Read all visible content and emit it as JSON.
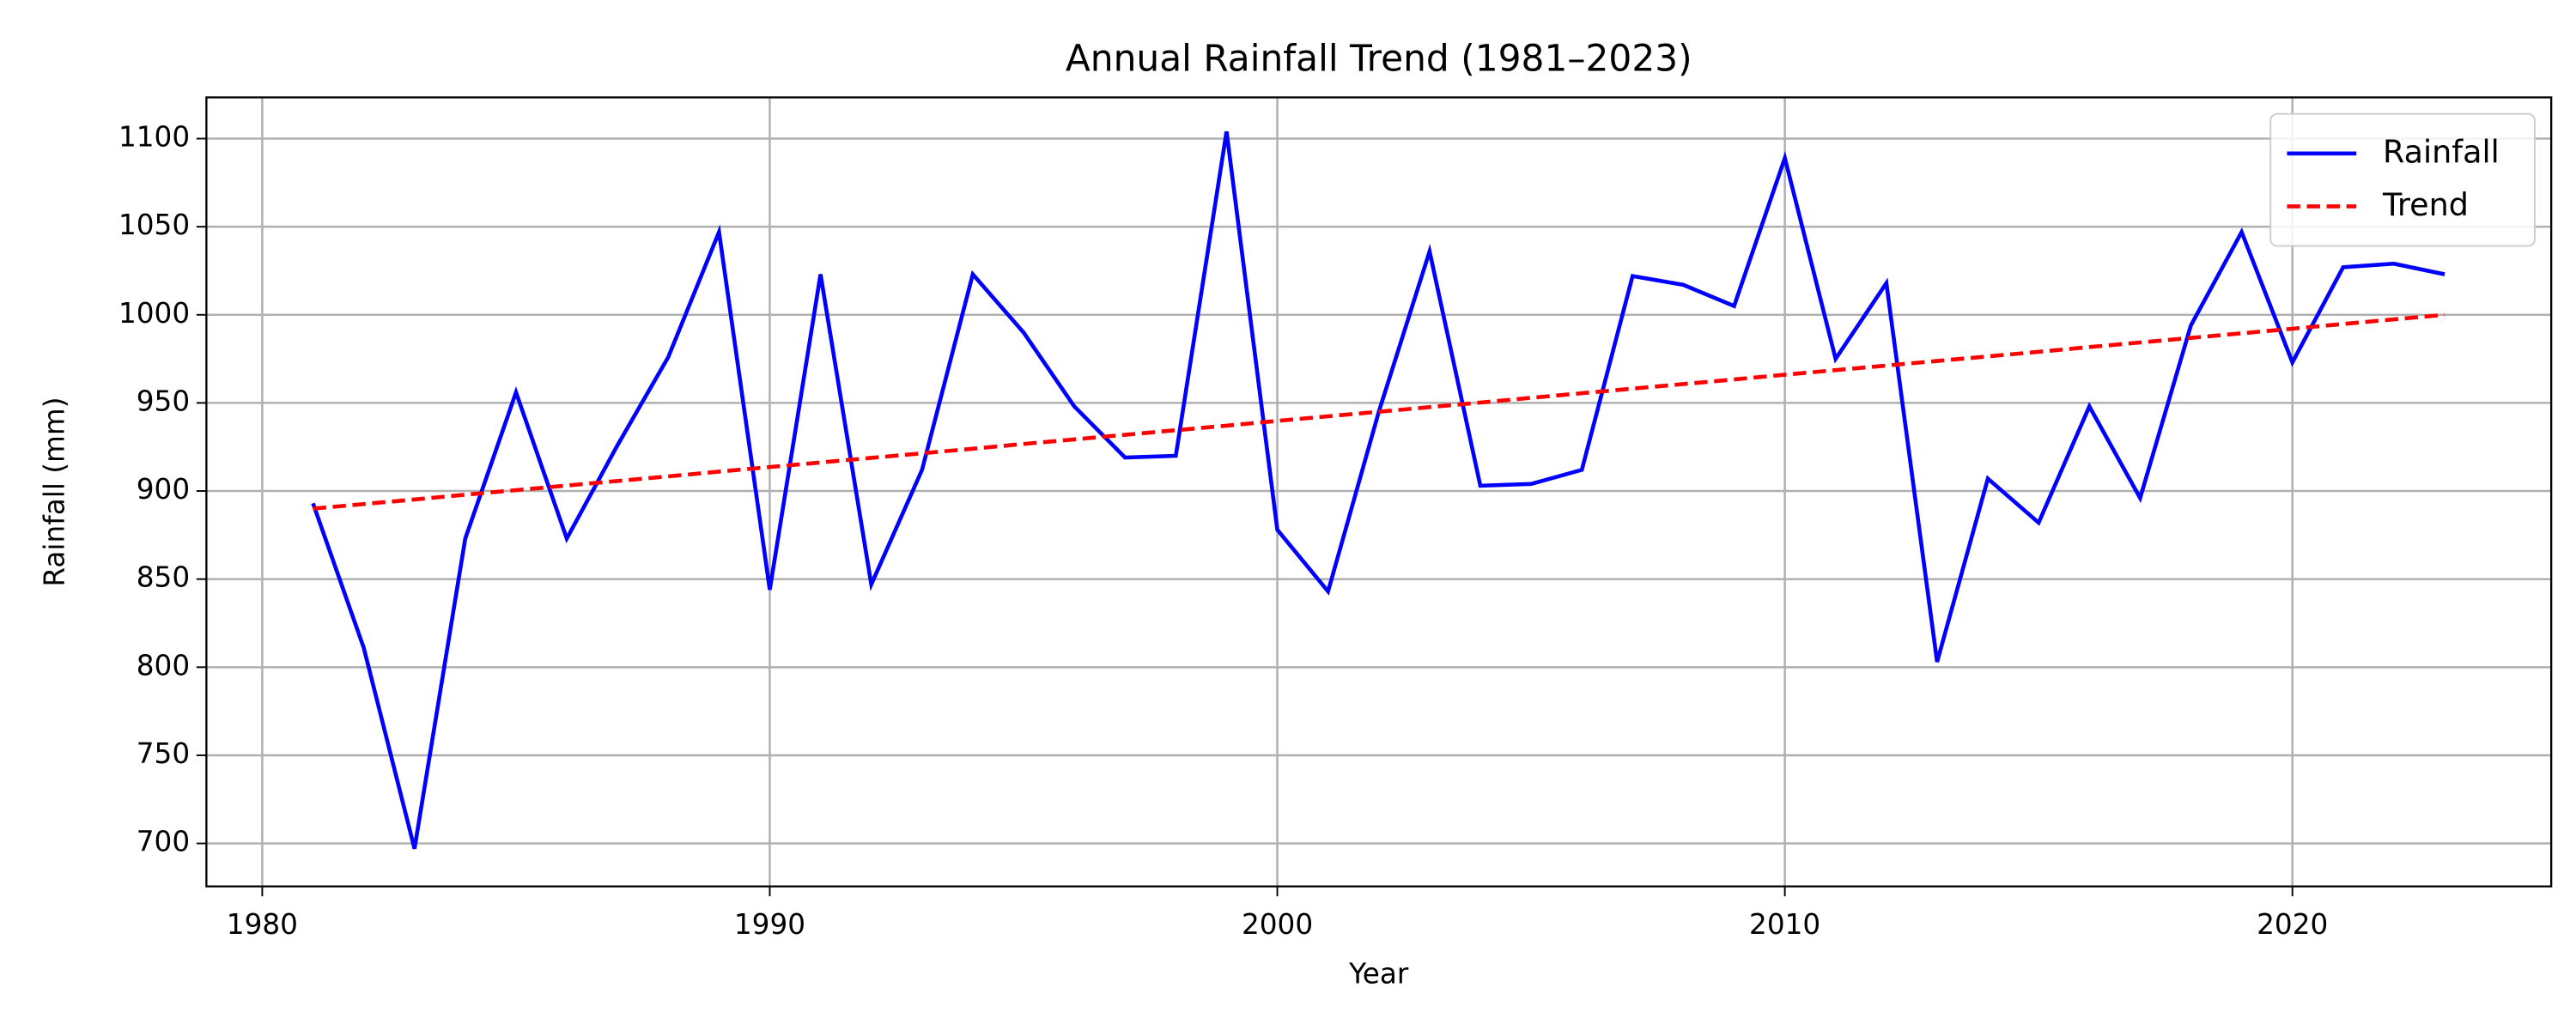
{
  "chart_data": {
    "type": "line",
    "title": "Annual Rainfall Trend (1981–2023)",
    "x_label": "Year",
    "y_label": "Rainfall (mm)",
    "x": [
      1981,
      1982,
      1983,
      1984,
      1985,
      1986,
      1987,
      1988,
      1989,
      1990,
      1991,
      1992,
      1993,
      1994,
      1995,
      1996,
      1997,
      1998,
      1999,
      2000,
      2001,
      2002,
      2003,
      2004,
      2005,
      2006,
      2007,
      2008,
      2009,
      2010,
      2011,
      2012,
      2013,
      2014,
      2015,
      2016,
      2017,
      2018,
      2019,
      2020,
      2021,
      2022,
      2023
    ],
    "series": [
      {
        "name": "Rainfall",
        "color": "#0000ff",
        "dash": "solid",
        "values": [
          893,
          811,
          697,
          873,
          956,
          873,
          926,
          976,
          1047,
          844,
          1023,
          847,
          912,
          1023,
          990,
          948,
          919,
          920,
          1104,
          878,
          843,
          945,
          1036,
          903,
          904,
          912,
          1022,
          1017,
          1005,
          1089,
          975,
          1018,
          803,
          907,
          882,
          948,
          896,
          994,
          1047,
          973,
          1027,
          1029,
          1023
        ]
      },
      {
        "name": "Trend",
        "color": "#ff0000",
        "dash": "dashed",
        "values": [
          890.0,
          892.6,
          895.2,
          897.9,
          900.5,
          903.1,
          905.7,
          908.3,
          911.0,
          913.6,
          916.2,
          918.8,
          921.4,
          924.0,
          926.7,
          929.3,
          931.9,
          934.5,
          937.1,
          939.8,
          942.4,
          945.0,
          947.6,
          950.2,
          952.9,
          955.5,
          958.1,
          960.7,
          963.3,
          966.0,
          968.6,
          971.2,
          973.8,
          976.4,
          979.0,
          981.7,
          984.3,
          986.9,
          989.5,
          992.1,
          994.8,
          997.4,
          1000.0
        ]
      }
    ],
    "xlim": [
      1978.9,
      2025.1
    ],
    "xticks": [
      1980,
      1990,
      2000,
      2010,
      2020
    ],
    "ylim": [
      675.6,
      1123.4
    ],
    "yticks": [
      700,
      750,
      800,
      850,
      900,
      950,
      1000,
      1050,
      1100
    ],
    "grid": true,
    "legend": "upper right"
  }
}
